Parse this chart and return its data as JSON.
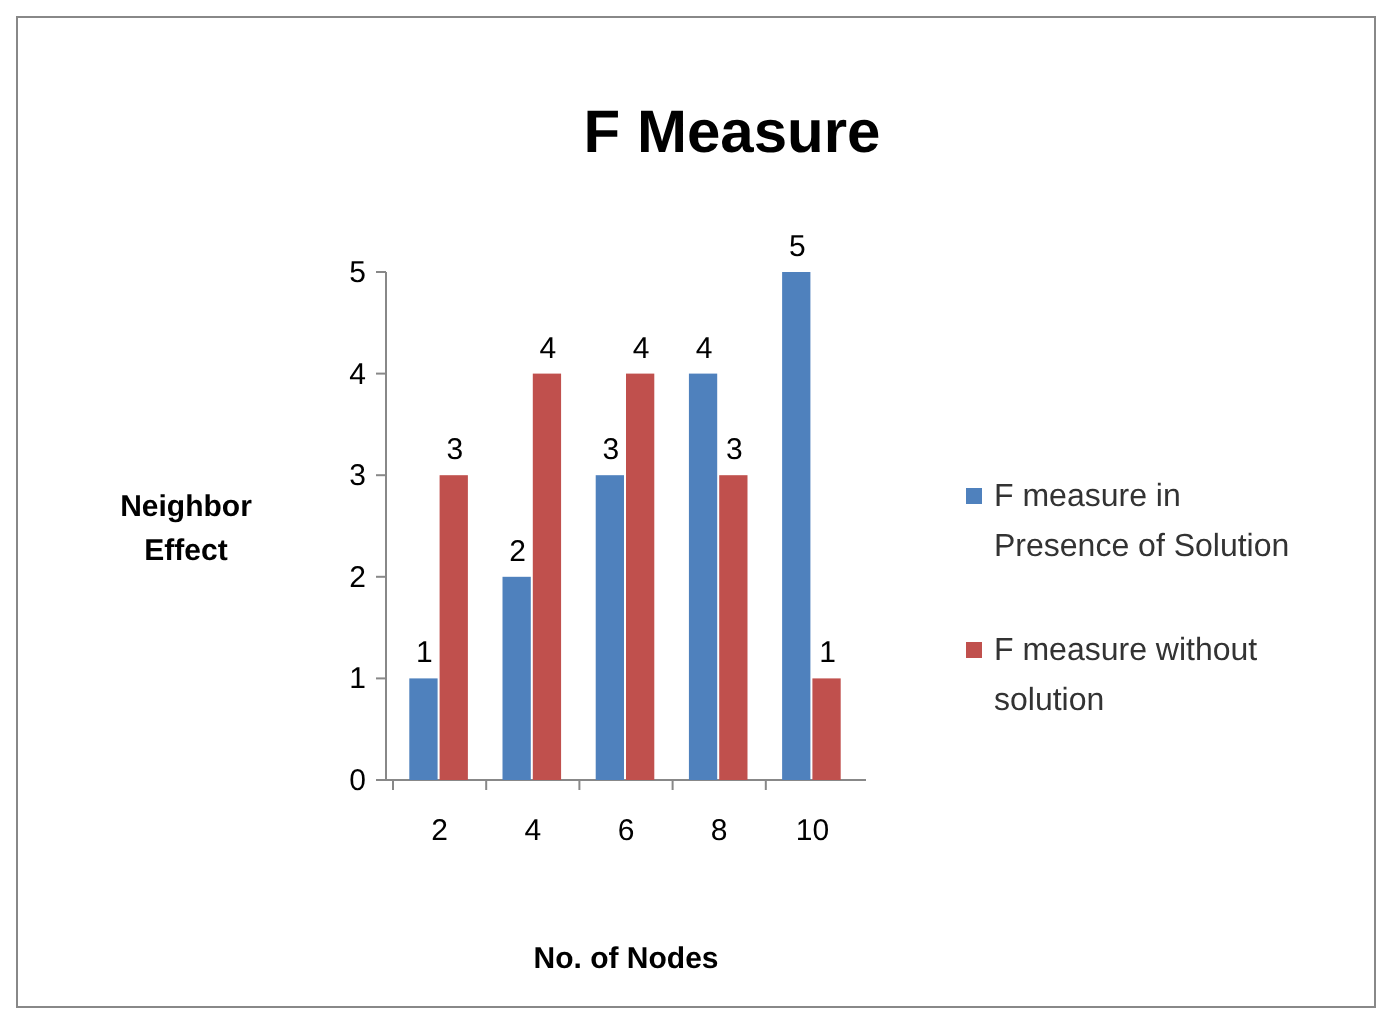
{
  "chart_data": {
    "type": "bar",
    "title": "F Measure",
    "xlabel": "No. of Nodes",
    "ylabel": "Neighbor Effect",
    "categories": [
      "2",
      "4",
      "6",
      "8",
      "10"
    ],
    "series": [
      {
        "name": "F measure in Presence of Solution",
        "color": "#4f81bd",
        "values": [
          1,
          2,
          3,
          4,
          5
        ]
      },
      {
        "name": "F measure without solution",
        "color": "#c0504d",
        "values": [
          3,
          4,
          4,
          3,
          1
        ]
      }
    ],
    "ylim": [
      0,
      5
    ],
    "yticks": [
      0,
      1,
      2,
      3,
      4,
      5
    ],
    "data_labels": true,
    "legend": "right",
    "grid": false
  }
}
